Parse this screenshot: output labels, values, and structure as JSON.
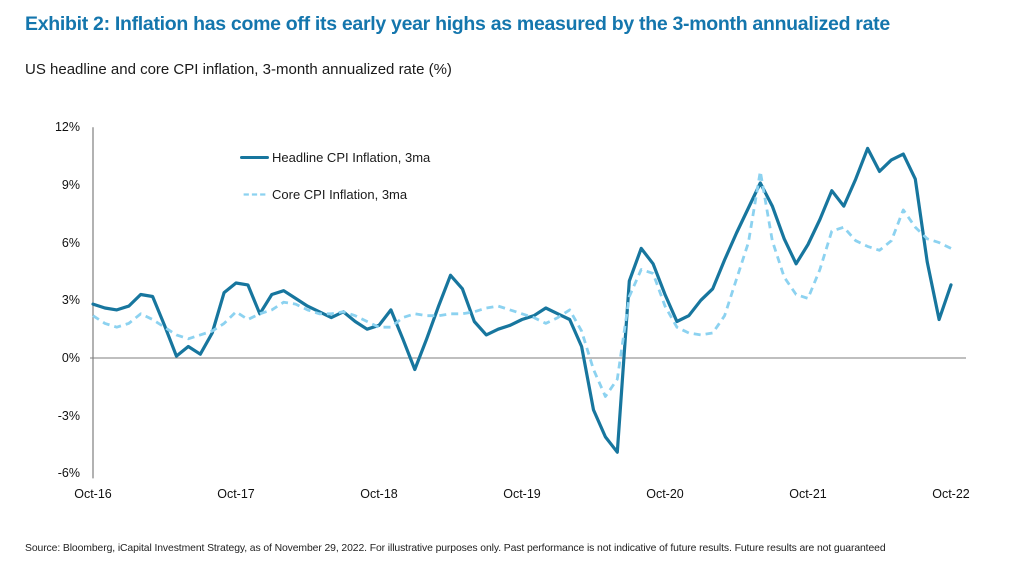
{
  "header": {
    "title": "Exhibit 2: Inflation has come off its early year highs as measured by the 3-month annualized rate",
    "subtitle": "US headline and core CPI inflation, 3-month annualized rate (%)"
  },
  "footer": {
    "source": "Source: Bloomberg, iCapital Investment Strategy, as of November 29, 2022. For illustrative purposes only. Past performance is not indicative of future results. Future results are not guaranteed"
  },
  "colors": {
    "title": "#1476ad",
    "headline_line": "#17769e",
    "core_line": "#8cd2f0",
    "zero_line": "#7f7f7f",
    "axis_line": "#7f7f7f",
    "tick_text": "#111111"
  },
  "chart_data": {
    "type": "line",
    "title": "US headline and core CPI inflation, 3-month annualized rate (%)",
    "frequency": "monthly",
    "x_start": "Oct-2016",
    "x_end": "Oct-2022",
    "x_tick_labels": [
      "Oct-16",
      "Oct-17",
      "Oct-18",
      "Oct-19",
      "Oct-20",
      "Oct-21",
      "Oct-22"
    ],
    "y_ticks": [
      12,
      9,
      6,
      3,
      0,
      -3,
      -6
    ],
    "y_tick_labels": [
      "12%",
      "9%",
      "6%",
      "3%",
      "0%",
      "-3%",
      "-6%"
    ],
    "ylim": [
      -6,
      12
    ],
    "grid": false,
    "legend_position": "inside-top-left",
    "series": [
      {
        "name": "Headline CPI Inflation, 3ma",
        "style": "solid",
        "color": "#17769e",
        "values": [
          2.8,
          2.6,
          2.5,
          2.7,
          3.3,
          3.2,
          1.7,
          0.1,
          0.6,
          0.2,
          1.3,
          3.4,
          3.9,
          3.8,
          2.3,
          3.3,
          3.5,
          3.1,
          2.7,
          2.4,
          2.1,
          2.4,
          1.9,
          1.5,
          1.7,
          2.5,
          1.0,
          -0.6,
          1.0,
          2.7,
          4.3,
          3.6,
          1.9,
          1.2,
          1.5,
          1.7,
          2.0,
          2.2,
          2.6,
          2.3,
          2.0,
          0.6,
          -2.7,
          -4.1,
          -4.9,
          4.0,
          5.7,
          4.9,
          3.3,
          1.9,
          2.2,
          3.0,
          3.6,
          5.1,
          6.5,
          7.8,
          9.1,
          7.9,
          6.2,
          4.9,
          5.9,
          7.2,
          8.7,
          7.9,
          9.3,
          10.9,
          9.7,
          10.3,
          10.6,
          9.3,
          5.0,
          2.0,
          3.8
        ]
      },
      {
        "name": "Core CPI Inflation, 3ma",
        "style": "dashed",
        "color": "#8cd2f0",
        "values": [
          2.2,
          1.8,
          1.6,
          1.8,
          2.3,
          2.0,
          1.6,
          1.2,
          1.0,
          1.2,
          1.4,
          1.8,
          2.4,
          2.0,
          2.3,
          2.5,
          2.9,
          2.8,
          2.5,
          2.3,
          2.3,
          2.4,
          2.2,
          1.9,
          1.6,
          1.6,
          2.1,
          2.3,
          2.2,
          2.2,
          2.3,
          2.3,
          2.4,
          2.6,
          2.7,
          2.5,
          2.3,
          2.1,
          1.8,
          2.1,
          2.5,
          1.4,
          -0.6,
          -2.0,
          -1.1,
          3.2,
          4.6,
          4.4,
          2.7,
          1.6,
          1.3,
          1.2,
          1.3,
          2.2,
          4.1,
          6.0,
          9.7,
          6.1,
          4.2,
          3.3,
          3.1,
          4.6,
          6.6,
          6.8,
          6.1,
          5.8,
          5.6,
          6.1,
          7.7,
          6.8,
          6.2,
          6.0,
          5.7
        ]
      }
    ]
  }
}
